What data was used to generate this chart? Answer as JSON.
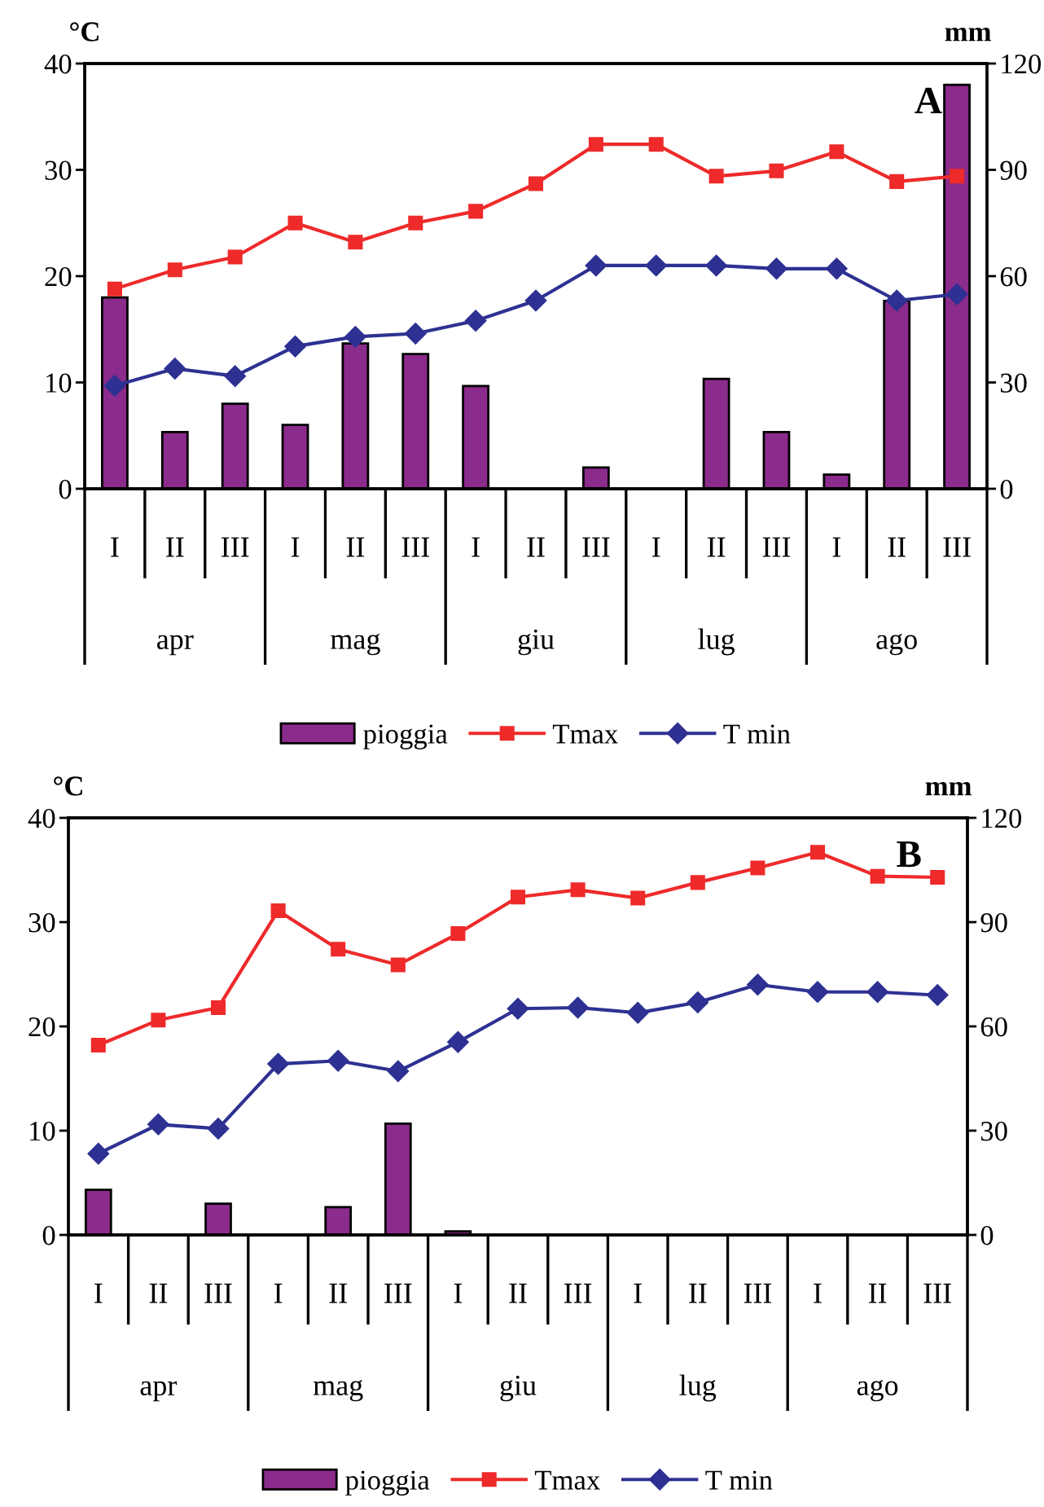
{
  "chart_data": [
    {
      "type": "bar",
      "title": "A",
      "ylabel": "°C",
      "y2label": "mm",
      "categories": [
        "I",
        "II",
        "III",
        "I",
        "II",
        "III",
        "I",
        "II",
        "III",
        "I",
        "II",
        "III",
        "I",
        "II",
        "III"
      ],
      "annotations": [
        "apr",
        "mag",
        "giu",
        "lug",
        "ago"
      ],
      "series": [
        {
          "name": "pioggia",
          "axis": "y2",
          "color": "#8b2b8b",
          "values": [
            54,
            16,
            24,
            18,
            41,
            38,
            29,
            null,
            6,
            null,
            31,
            16,
            4,
            53,
            114
          ]
        },
        {
          "name": "Tmax",
          "type": "line",
          "color": "#ee2a2a",
          "marker": "square",
          "values": [
            18.8,
            20.6,
            21.8,
            25.0,
            23.2,
            25.0,
            26.1,
            28.7,
            32.4,
            32.4,
            29.4,
            29.9,
            31.7,
            28.9,
            29.4
          ]
        },
        {
          "name": "T min",
          "type": "line",
          "color": "#2e3192",
          "marker": "diamond",
          "values": [
            9.7,
            11.3,
            10.6,
            13.4,
            14.3,
            14.6,
            15.8,
            17.7,
            21.0,
            21.0,
            21.0,
            20.7,
            20.7,
            17.7,
            18.3
          ]
        }
      ],
      "ylim": [
        0,
        40
      ],
      "yticks": [
        0,
        10,
        20,
        30,
        40
      ],
      "y2lim": [
        0,
        120
      ],
      "y2ticks": [
        0,
        30,
        60,
        90,
        120
      ],
      "legend": "bottom"
    },
    {
      "type": "bar",
      "title": "B",
      "ylabel": "°C",
      "y2label": "mm",
      "categories": [
        "I",
        "II",
        "III",
        "I",
        "II",
        "III",
        "I",
        "II",
        "III",
        "I",
        "II",
        "III",
        "I",
        "II",
        "III"
      ],
      "annotations": [
        "apr",
        "mag",
        "giu",
        "lug",
        "ago"
      ],
      "series": [
        {
          "name": "pioggia",
          "axis": "y2",
          "color": "#8b2b8b",
          "values": [
            13,
            null,
            9,
            null,
            8,
            32,
            1,
            null,
            null,
            null,
            null,
            null,
            null,
            null,
            null
          ]
        },
        {
          "name": "Tmax",
          "type": "line",
          "color": "#ee2a2a",
          "marker": "square",
          "values": [
            18.2,
            20.6,
            21.8,
            31.1,
            27.4,
            25.9,
            28.9,
            32.4,
            33.1,
            32.3,
            33.8,
            35.2,
            36.7,
            34.4,
            34.3
          ]
        },
        {
          "name": "T min",
          "type": "line",
          "color": "#2e3192",
          "marker": "diamond",
          "values": [
            7.8,
            10.6,
            10.2,
            16.4,
            16.7,
            15.7,
            18.5,
            21.7,
            21.8,
            21.3,
            22.3,
            24.0,
            23.3,
            23.3,
            23.0
          ]
        }
      ],
      "ylim": [
        0,
        40
      ],
      "yticks": [
        0,
        10,
        20,
        30,
        40
      ],
      "y2lim": [
        0,
        120
      ],
      "y2ticks": [
        0,
        30,
        60,
        90,
        120
      ],
      "legend": "bottom"
    }
  ]
}
